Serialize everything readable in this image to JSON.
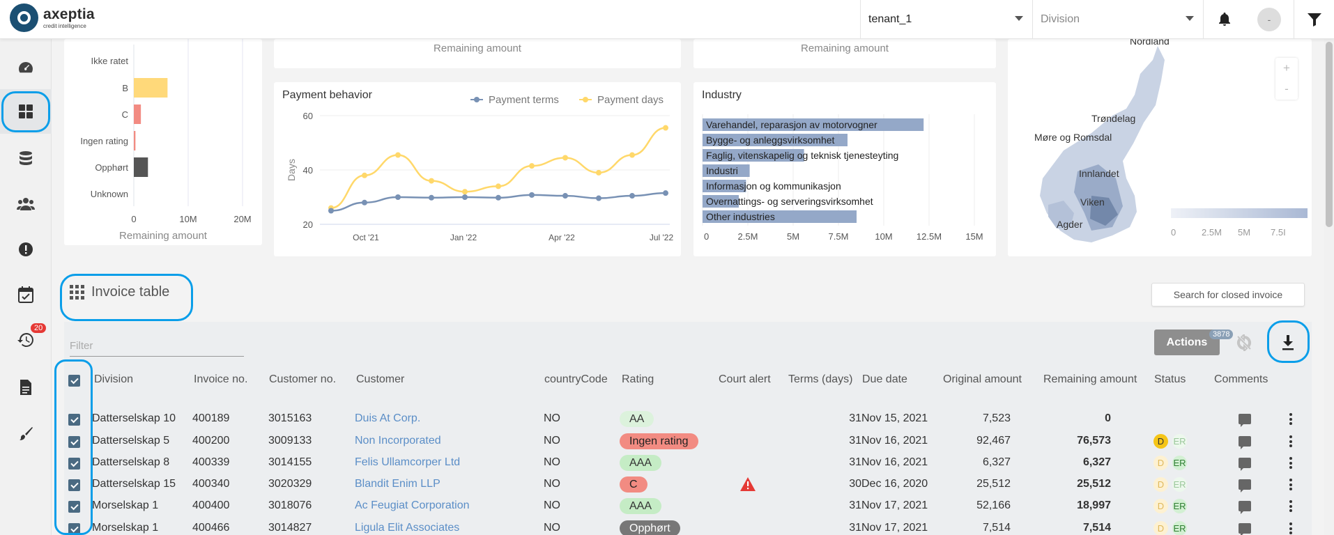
{
  "app": {
    "name": "axeptia",
    "tagline": "credit intelligence"
  },
  "header": {
    "tenant": "tenant_1",
    "division_placeholder": "Division",
    "avatar_initial": "-"
  },
  "sidebar": {
    "notifications_badge": "20"
  },
  "rating_chart": {
    "categories": [
      "Ikke ratet",
      "B",
      "C",
      "Ingen rating",
      "Opphørt",
      "Unknown"
    ],
    "ticks": [
      "0",
      "10M",
      "20M"
    ],
    "xlabel": "Remaining amount"
  },
  "top_cards": {
    "card1_xlabel": "Remaining amount",
    "card2_xlabel": "Remaining amount"
  },
  "chart_data": [
    {
      "type": "bar",
      "title": "",
      "categories": [
        "Ikke ratet",
        "B",
        "C",
        "Ingen rating",
        "Opphørt",
        "Unknown"
      ],
      "values": [
        0,
        6.2,
        1.3,
        0.3,
        2.6,
        0
      ],
      "unit": "M",
      "xlabel": "Remaining amount",
      "xlim": [
        0,
        20
      ],
      "colors": [
        "#ccc",
        "#ffd97a",
        "#f28b82",
        "#f28b82",
        "#555555",
        "#ccc"
      ]
    },
    {
      "type": "line",
      "title": "Payment behavior",
      "ylabel": "Days",
      "ylim": [
        20,
        60
      ],
      "yticks": [
        "20",
        "40",
        "60"
      ],
      "xticks": [
        "Oct '21",
        "Jan '22",
        "Apr '22",
        "Jul '22"
      ],
      "series": [
        {
          "name": "Payment terms",
          "color": "#7891b4",
          "values": [
            25,
            28,
            30,
            29.8,
            30,
            29.8,
            30.8,
            30.5,
            29.6,
            30.5,
            31.5
          ]
        },
        {
          "name": "Payment days",
          "color": "#ffd86a",
          "values": [
            26,
            38,
            45.5,
            36,
            32,
            34,
            41.5,
            44.5,
            39,
            45.5,
            55.5
          ]
        }
      ]
    },
    {
      "type": "bar",
      "title": "Industry",
      "orientation": "horizontal",
      "categories": [
        "Varehandel, reparasjon av motorvogner",
        "Bygge- og anleggsvirksomhet",
        "Faglig, vitenskapelig og teknisk tjenesteyting",
        "Industri",
        "Informasjon og kommunikasjon",
        "Overnattings- og serveringsvirksomhet",
        "Other industries"
      ],
      "values": [
        12.2,
        8,
        5.6,
        2.6,
        2.4,
        2,
        8.5
      ],
      "xticks": [
        "0",
        "2.5M",
        "5M",
        "7.5M",
        "10M",
        "12.5M",
        "15M"
      ],
      "xlim": [
        0,
        15
      ],
      "color": "#94a8c8"
    }
  ],
  "map": {
    "regions": [
      "Nordland",
      "Trøndelag",
      "Møre og Romsdal",
      "Innlandet",
      "Viken",
      "Agder"
    ],
    "legend_ticks": [
      "0",
      "2.5M",
      "5M",
      "7.5I"
    ],
    "zoom_in": "+",
    "zoom_out": "-"
  },
  "invoice": {
    "title": "Invoice table",
    "search_closed": "Search for closed invoice",
    "filter_placeholder": "Filter",
    "actions_label": "Actions",
    "count": "3878",
    "columns": [
      "Division",
      "Invoice no.",
      "Customer no.",
      "Customer",
      "countryCode",
      "Rating",
      "Court alert",
      "Terms (days)",
      "Due date",
      "Original amount",
      "Remaining amount",
      "Status",
      "Comments"
    ],
    "rows": [
      {
        "division": "Datterselskap 10",
        "invoice_no": "400189",
        "customer_no": "3015163",
        "customer": "Duis At Corp.",
        "country": "NO",
        "rating": "AA",
        "rating_color": "#dcf2dc",
        "rating_text": "#333",
        "court_alert": false,
        "terms": "31",
        "due": "Nov 15, 2021",
        "original": "7,523",
        "remaining": "0",
        "status_d": false,
        "status_d_text": "",
        "status_er": false,
        "status_er_text": ""
      },
      {
        "division": "Datterselskap 5",
        "invoice_no": "400200",
        "customer_no": "3009133",
        "customer": "Non Incorporated",
        "country": "NO",
        "rating": "Ingen rating",
        "rating_color": "#f28b82",
        "rating_text": "#222",
        "court_alert": false,
        "terms": "31",
        "due": "Nov 16, 2021",
        "original": "92,467",
        "remaining": "76,573",
        "status_d": true,
        "status_d_text": "D",
        "status_d_strong": true,
        "status_er": true,
        "status_er_text": "ER",
        "status_er_strong": false
      },
      {
        "division": "Datterselskap 8",
        "invoice_no": "400339",
        "customer_no": "3014155",
        "customer": "Felis Ullamcorper Ltd",
        "country": "NO",
        "rating": "AAA",
        "rating_color": "#c5ecc5",
        "rating_text": "#333",
        "court_alert": false,
        "terms": "31",
        "due": "Nov 16, 2021",
        "original": "6,327",
        "remaining": "6,327",
        "status_d": true,
        "status_d_text": "D",
        "status_d_strong": false,
        "status_er": true,
        "status_er_text": "ER",
        "status_er_strong": true
      },
      {
        "division": "Datterselskap 15",
        "invoice_no": "400340",
        "customer_no": "3020329",
        "customer": "Blandit Enim LLP",
        "country": "NO",
        "rating": "C",
        "rating_color": "#f28b82",
        "rating_text": "#222",
        "court_alert": true,
        "terms": "30",
        "due": "Dec 16, 2020",
        "original": "25,512",
        "remaining": "25,512",
        "status_d": true,
        "status_d_text": "D",
        "status_d_strong": false,
        "status_er": true,
        "status_er_text": "ER",
        "status_er_strong": false
      },
      {
        "division": "Morselskap 1",
        "invoice_no": "400400",
        "customer_no": "3018076",
        "customer": "Ac Feugiat Corporation",
        "country": "NO",
        "rating": "AAA",
        "rating_color": "#c5ecc5",
        "rating_text": "#333",
        "court_alert": false,
        "terms": "31",
        "due": "Nov 17, 2021",
        "original": "52,166",
        "remaining": "18,997",
        "status_d": true,
        "status_d_text": "D",
        "status_d_strong": false,
        "status_er": true,
        "status_er_text": "ER",
        "status_er_strong": true
      },
      {
        "division": "Morselskap 1",
        "invoice_no": "400466",
        "customer_no": "3014827",
        "customer": "Ligula Elit Associates",
        "country": "NO",
        "rating": "Opphørt",
        "rating_color": "#777777",
        "rating_text": "#fff",
        "court_alert": false,
        "terms": "31",
        "due": "Nov 17, 2021",
        "original": "7,514",
        "remaining": "7,514",
        "status_d": true,
        "status_d_text": "D",
        "status_d_strong": false,
        "status_er": true,
        "status_er_text": "ER",
        "status_er_strong": true
      }
    ]
  }
}
